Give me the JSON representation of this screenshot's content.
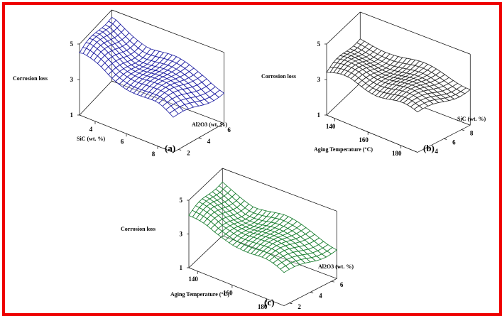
{
  "figure": {
    "frame_color": "#ee0000"
  },
  "chart_data": [
    {
      "type": "surface",
      "panel_label": "(a)",
      "zlabel": "Corrosion loss",
      "xlabel": "SiC (wt. %)",
      "ylabel": "Al2O3 (wt. %)",
      "zticks": [
        "1",
        "3",
        "5"
      ],
      "xticks": [
        "4",
        "6",
        "8"
      ],
      "yticks": [
        "2",
        "4",
        "6"
      ],
      "xlim": [
        3,
        9
      ],
      "ylim": [
        1.5,
        6.5
      ],
      "zlim": [
        1,
        5
      ],
      "surface_color": "#1a1aa0",
      "surface_z_range": [
        2.8,
        4.6
      ],
      "z_at_x": [
        [
          3.2,
          4.5
        ],
        [
          5,
          3.8
        ],
        [
          6.5,
          3.6
        ],
        [
          8,
          3.3
        ],
        [
          9,
          2.9
        ]
      ]
    },
    {
      "type": "surface",
      "panel_label": "(b)",
      "zlabel": "Corrosion loss",
      "xlabel": "Aging Temperature (°C)",
      "ylabel": "SiC (wt. %)",
      "zticks": [
        "1",
        "3",
        "5"
      ],
      "xticks": [
        "140",
        "160",
        "180"
      ],
      "yticks": [
        "4",
        "6",
        "8"
      ],
      "xlim": [
        135,
        190
      ],
      "ylim": [
        3,
        9
      ],
      "zlim": [
        1,
        5
      ],
      "surface_color": "#222222",
      "surface_z_range": [
        3.1,
        3.6
      ],
      "z_at_x": [
        [
          135,
          3.4
        ],
        [
          150,
          3.5
        ],
        [
          165,
          3.4
        ],
        [
          180,
          3.3
        ],
        [
          190,
          3.2
        ]
      ]
    },
    {
      "type": "surface",
      "panel_label": "(c)",
      "zlabel": "Corrosion loss",
      "xlabel": "Aging Temperature (°C)",
      "ylabel": "Al2O3 (wt. %)",
      "zticks": [
        "1",
        "3",
        "5"
      ],
      "xticks": [
        "140",
        "160",
        "180"
      ],
      "yticks": [
        "2",
        "4",
        "6"
      ],
      "xlim": [
        135,
        190
      ],
      "ylim": [
        1.5,
        6.5
      ],
      "zlim": [
        1,
        5
      ],
      "surface_color": "#137a2a",
      "surface_z_range": [
        2.8,
        4.2
      ],
      "z_at_x": [
        [
          135,
          4.1
        ],
        [
          150,
          3.6
        ],
        [
          165,
          3.5
        ],
        [
          180,
          3.2
        ],
        [
          190,
          2.9
        ]
      ]
    }
  ]
}
